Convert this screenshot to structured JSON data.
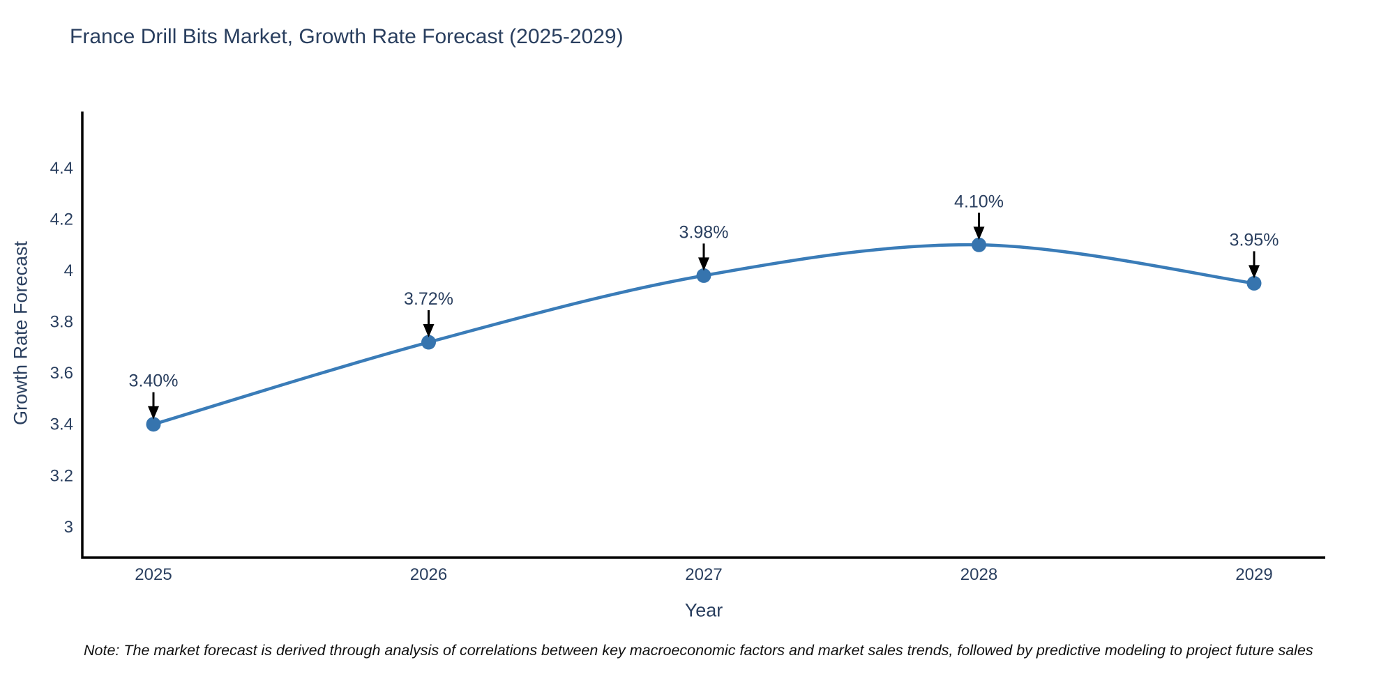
{
  "title": "France Drill Bits Market, Growth Rate Forecast (2025-2029)",
  "note": "Note: The market forecast is derived through analysis of correlations between key macroeconomic factors and market sales trends, followed by predictive modeling to project future sales",
  "chart_data": {
    "type": "line",
    "title": "France Drill Bits Market, Growth Rate Forecast (2025-2029)",
    "xlabel": "Year",
    "ylabel": "Growth Rate Forecast",
    "categories": [
      "2025",
      "2026",
      "2027",
      "2028",
      "2029"
    ],
    "x": [
      2025,
      2026,
      2027,
      2028,
      2029
    ],
    "values": [
      3.4,
      3.72,
      3.98,
      4.1,
      3.95
    ],
    "point_labels": [
      "3.40%",
      "3.72%",
      "3.98%",
      "4.10%",
      "3.95%"
    ],
    "yticks": [
      3,
      3.2,
      3.4,
      3.6,
      3.8,
      4,
      4.2,
      4.4
    ],
    "ylim": [
      2.88,
      4.62
    ],
    "grid": false,
    "legend_position": "none",
    "line_shape": "spline",
    "annotation_style": "arrow-down-to-point",
    "colors": {
      "line": "#3a7cb8",
      "marker": "#3674ae",
      "arrow": "#000000",
      "axis": "#000000",
      "tick_text": "#2a3f5f",
      "label_text": "#2a3f5f"
    }
  }
}
